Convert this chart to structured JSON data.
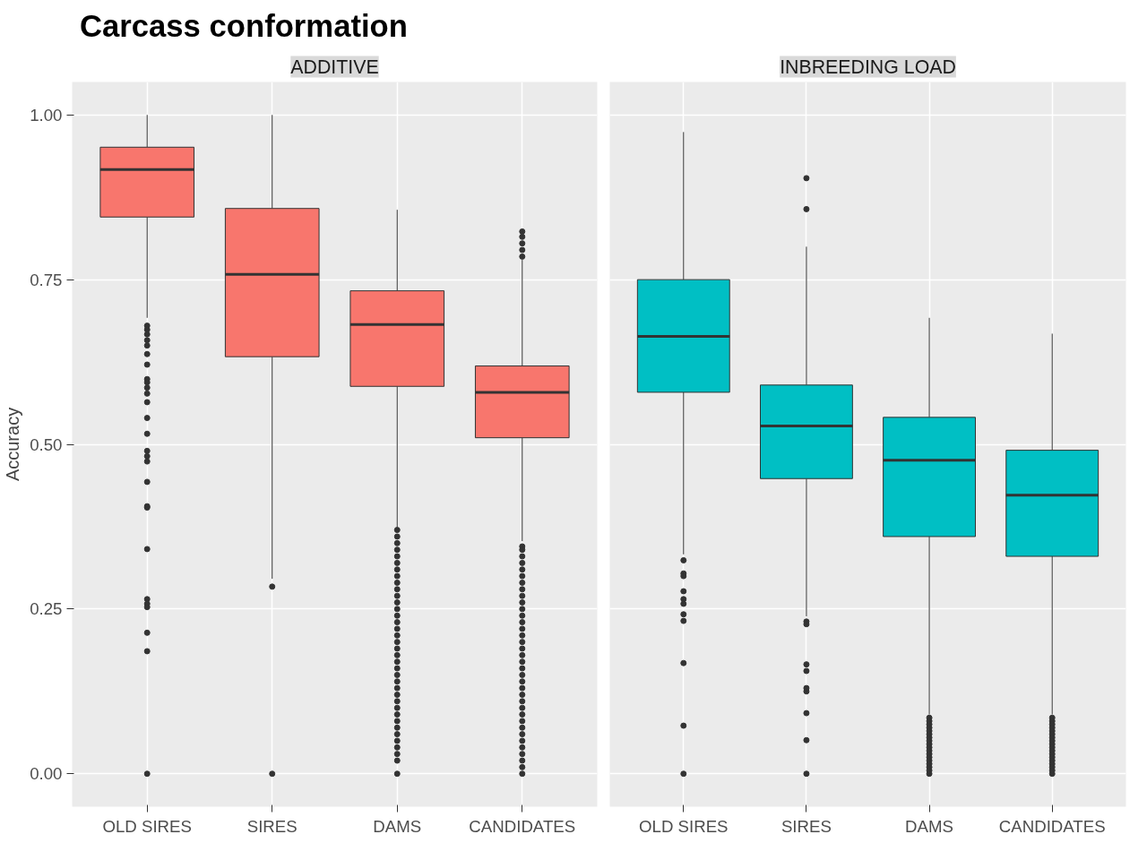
{
  "chart_data": [
    {
      "type": "box",
      "title": "Carcass conformation",
      "subtitle": "ADDITIVE",
      "ylabel": "Accuracy",
      "categories": [
        "OLD SIRES",
        "SIRES",
        "DAMS",
        "CANDIDATES"
      ],
      "series": [
        {
          "color": "#f8766d",
          "boxes": [
            {
              "low": 0.692,
              "q1": 0.845,
              "median": 0.917,
              "q3": 0.951,
              "high": 1.0,
              "outliers": [
                0.68,
                0.674,
                0.667,
                0.658,
                0.65,
                0.637,
                0.621,
                0.599,
                0.594,
                0.586,
                0.577,
                0.564,
                0.54,
                0.516,
                0.49,
                0.482,
                0.474,
                0.443,
                0.406,
                0.404,
                0.341,
                0.265,
                0.258,
                0.253,
                0.214,
                0.186,
                0.0
              ]
            },
            {
              "low": 0.296,
              "q1": 0.633,
              "median": 0.758,
              "q3": 0.858,
              "high": 1.0,
              "outliers": [
                0.284,
                0.0
              ]
            },
            {
              "low": 0.374,
              "q1": 0.588,
              "median": 0.682,
              "q3": 0.733,
              "high": 0.856,
              "outliers": [
                0.37,
                0.36,
                0.35,
                0.34,
                0.33,
                0.32,
                0.31,
                0.3,
                0.29,
                0.28,
                0.27,
                0.26,
                0.25,
                0.24,
                0.23,
                0.22,
                0.21,
                0.2,
                0.19,
                0.18,
                0.17,
                0.16,
                0.15,
                0.14,
                0.13,
                0.12,
                0.11,
                0.1,
                0.09,
                0.08,
                0.07,
                0.06,
                0.05,
                0.04,
                0.03,
                0.02,
                0.0
              ]
            },
            {
              "low": 0.353,
              "q1": 0.51,
              "median": 0.579,
              "q3": 0.619,
              "high": 0.78,
              "outliers": [
                0.823,
                0.815,
                0.805,
                0.795,
                0.785,
                0.345,
                0.34,
                0.33,
                0.32,
                0.31,
                0.3,
                0.29,
                0.28,
                0.27,
                0.26,
                0.25,
                0.24,
                0.23,
                0.22,
                0.21,
                0.2,
                0.19,
                0.18,
                0.17,
                0.16,
                0.15,
                0.14,
                0.13,
                0.12,
                0.11,
                0.1,
                0.09,
                0.08,
                0.07,
                0.06,
                0.05,
                0.04,
                0.03,
                0.02,
                0.01,
                0.0
              ]
            }
          ]
        }
      ],
      "ylim": [
        -0.05,
        1.05
      ],
      "yticks": [
        {
          "value": 0,
          "label": "0.00"
        },
        {
          "value": 0.25,
          "label": "0.25"
        },
        {
          "value": 0.5,
          "label": "0.50"
        },
        {
          "value": 0.75,
          "label": "0.75"
        },
        {
          "value": 1,
          "label": "1.00"
        }
      ],
      "grid": true
    },
    {
      "type": "box",
      "subtitle": "INBREEDING LOAD",
      "categories": [
        "OLD SIRES",
        "SIRES",
        "DAMS",
        "CANDIDATES"
      ],
      "series": [
        {
          "color": "#00bfc4",
          "boxes": [
            {
              "low": 0.333,
              "q1": 0.579,
              "median": 0.664,
              "q3": 0.75,
              "high": 0.974,
              "outliers": [
                0.324,
                0.304,
                0.3,
                0.277,
                0.265,
                0.258,
                0.242,
                0.232,
                0.168,
                0.073,
                0.0
              ]
            },
            {
              "low": 0.239,
              "q1": 0.448,
              "median": 0.528,
              "q3": 0.59,
              "high": 0.8,
              "outliers": [
                0.904,
                0.857,
                0.231,
                0.227,
                0.166,
                0.156,
                0.13,
                0.125,
                0.092,
                0.051,
                0.0
              ]
            },
            {
              "low": 0.09,
              "q1": 0.36,
              "median": 0.476,
              "q3": 0.541,
              "high": 0.692,
              "outliers": [
                0.085,
                0.08,
                0.075,
                0.07,
                0.065,
                0.06,
                0.055,
                0.05,
                0.045,
                0.04,
                0.035,
                0.03,
                0.025,
                0.02,
                0.015,
                0.01,
                0.005,
                0.0
              ]
            },
            {
              "low": 0.09,
              "q1": 0.33,
              "median": 0.423,
              "q3": 0.491,
              "high": 0.668,
              "outliers": [
                0.085,
                0.08,
                0.075,
                0.07,
                0.065,
                0.06,
                0.055,
                0.05,
                0.045,
                0.04,
                0.035,
                0.03,
                0.025,
                0.02,
                0.015,
                0.01,
                0.005,
                0.0
              ]
            }
          ]
        }
      ],
      "ylim": [
        -0.05,
        1.05
      ],
      "yticks": [
        {
          "value": 0,
          "label": null
        },
        {
          "value": 0.25,
          "label": null
        },
        {
          "value": 0.5,
          "label": null
        },
        {
          "value": 0.75,
          "label": null
        },
        {
          "value": 1,
          "label": null
        }
      ],
      "grid": true,
      "tick_labels": "x"
    }
  ]
}
